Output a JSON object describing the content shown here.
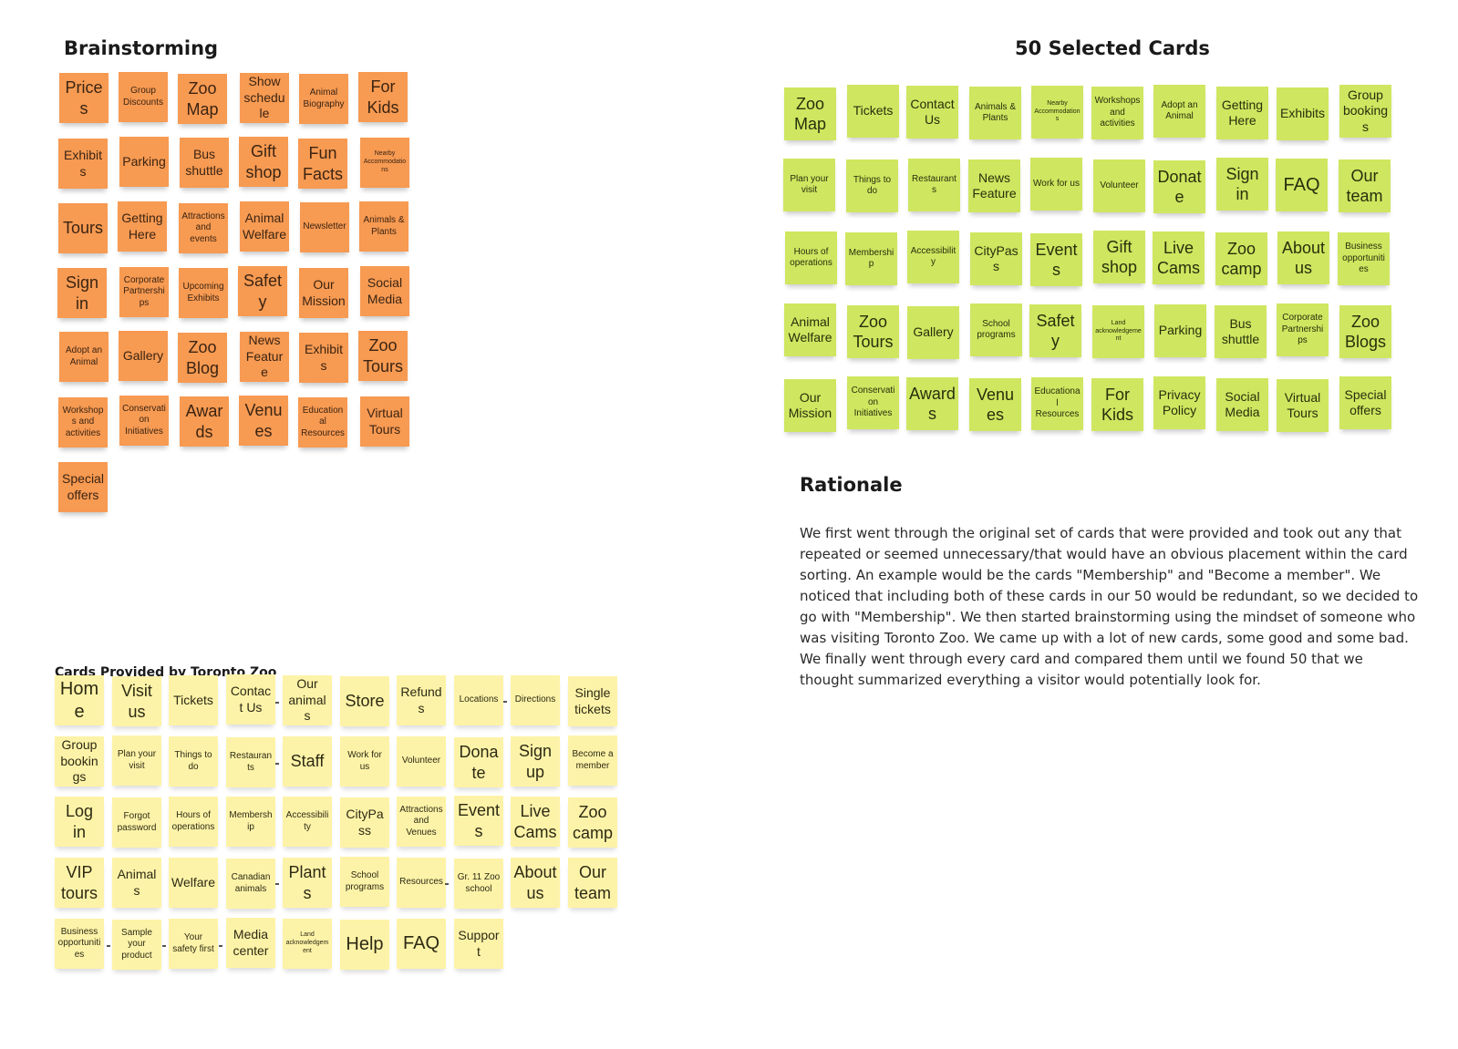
{
  "brainstorming": {
    "title": "Brainstorming",
    "cards": [
      "Prices",
      "Group Discounts",
      "Zoo Map",
      "Show schedule",
      "Animal Biography",
      "For Kids",
      "Exhibits",
      "Parking",
      "Bus shuttle",
      "Gift shop",
      "Fun Facts",
      "Nearby Accommodations",
      "Tours",
      "Getting Here",
      "Attractions and events",
      "Animal Welfare",
      "Newsletter",
      "Animals & Plants",
      "Sign in",
      "Corporate Partnerships",
      "Upcoming Exhibits",
      "Safety",
      "Our Mission",
      "Social Media",
      "Adopt an Animal",
      "Gallery",
      "Zoo Blog",
      "News Feature",
      "Exhibits",
      "Zoo Tours",
      "Workshops and activities",
      "Conservation Initiatives",
      "Awards",
      "Venues",
      "Educational Resources",
      "Virtual Tours",
      "Special offers"
    ]
  },
  "selected": {
    "title": "50 Selected Cards",
    "cards": [
      "Zoo Map",
      "Tickets",
      "Contact Us",
      "Animals & Plants",
      "Nearby Accommodations",
      "Workshops and activities",
      "Adopt an Animal",
      "Getting Here",
      "Exhibits",
      "Group bookings",
      "Plan your visit",
      "Things to do",
      "Restaurants",
      "News Feature",
      "Work for us",
      "Volunteer",
      "Donate",
      "Sign in",
      "FAQ",
      "Our team",
      "Hours of operations",
      "Membership",
      "Accessibility",
      "CityPass",
      "Events",
      "Gift shop",
      "Live Cams",
      "Zoo camp",
      "About us",
      "Business opportunities",
      "Animal Welfare",
      "Zoo Tours",
      "Gallery",
      "School programs",
      "Safety",
      "Land acknowledgement",
      "Parking",
      "Bus shuttle",
      "Corporate Partnerships",
      "Zoo Blogs",
      "Our Mission",
      "Conservation Initiatives",
      "Awards",
      "Venues",
      "Educational Resources",
      "For Kids",
      "Privacy Policy",
      "Social Media",
      "Virtual Tours",
      "Special offers"
    ]
  },
  "rationale": {
    "title": "Rationale",
    "body": "We first went through the original set of cards that were provided and took out any that repeated or seemed unnecessary/that would have an obvious placement within the card sorting. An example would be the cards \"Membership\" and \"Become a member\". We noticed that including both of these cards in our 50 would be redundant, so we decided to go with \"Membership\". We then started brainstorming using the mindset of someone who was visiting Toronto Zoo. We came up with a lot of new cards, some good and some bad. We finally went through every card and compared them until we found 50 that we thought summarized everything a visitor would potentially look for."
  },
  "provided": {
    "title": "Cards Provided by Toronto Zoo",
    "cards": [
      "Home",
      "Visit us",
      "Tickets",
      "Contact Us",
      "Our animals",
      "Store",
      "Refunds",
      "Locations",
      "Directions",
      "Single tickets",
      "Group bookings",
      "Plan your visit",
      "Things to do",
      "Restaurants",
      "Staff",
      "Work for us",
      "Volunteer",
      "Donate",
      "Sign up",
      "Become a member",
      "Log in",
      "Forgot password",
      "Hours of operations",
      "Membership",
      "Accessibility",
      "CityPass",
      "Attractions and Venues",
      "Events",
      "Live Cams",
      "Zoo camp",
      "VIP tours",
      "Animals",
      "Welfare",
      "Canadian animals",
      "Plants",
      "School programs",
      "Resources",
      "Gr. 11 Zoo school",
      "About us",
      "Our team",
      "Business opportunities",
      "Sample your product",
      "Your safety first",
      "Media center",
      "Land acknowledgement",
      "Help",
      "FAQ",
      "Support"
    ]
  },
  "colors": {
    "orange_note": "#f79a52",
    "green_note": "#cfe660",
    "yellow_note": "#fdf3a8",
    "background": "#ffffff"
  }
}
